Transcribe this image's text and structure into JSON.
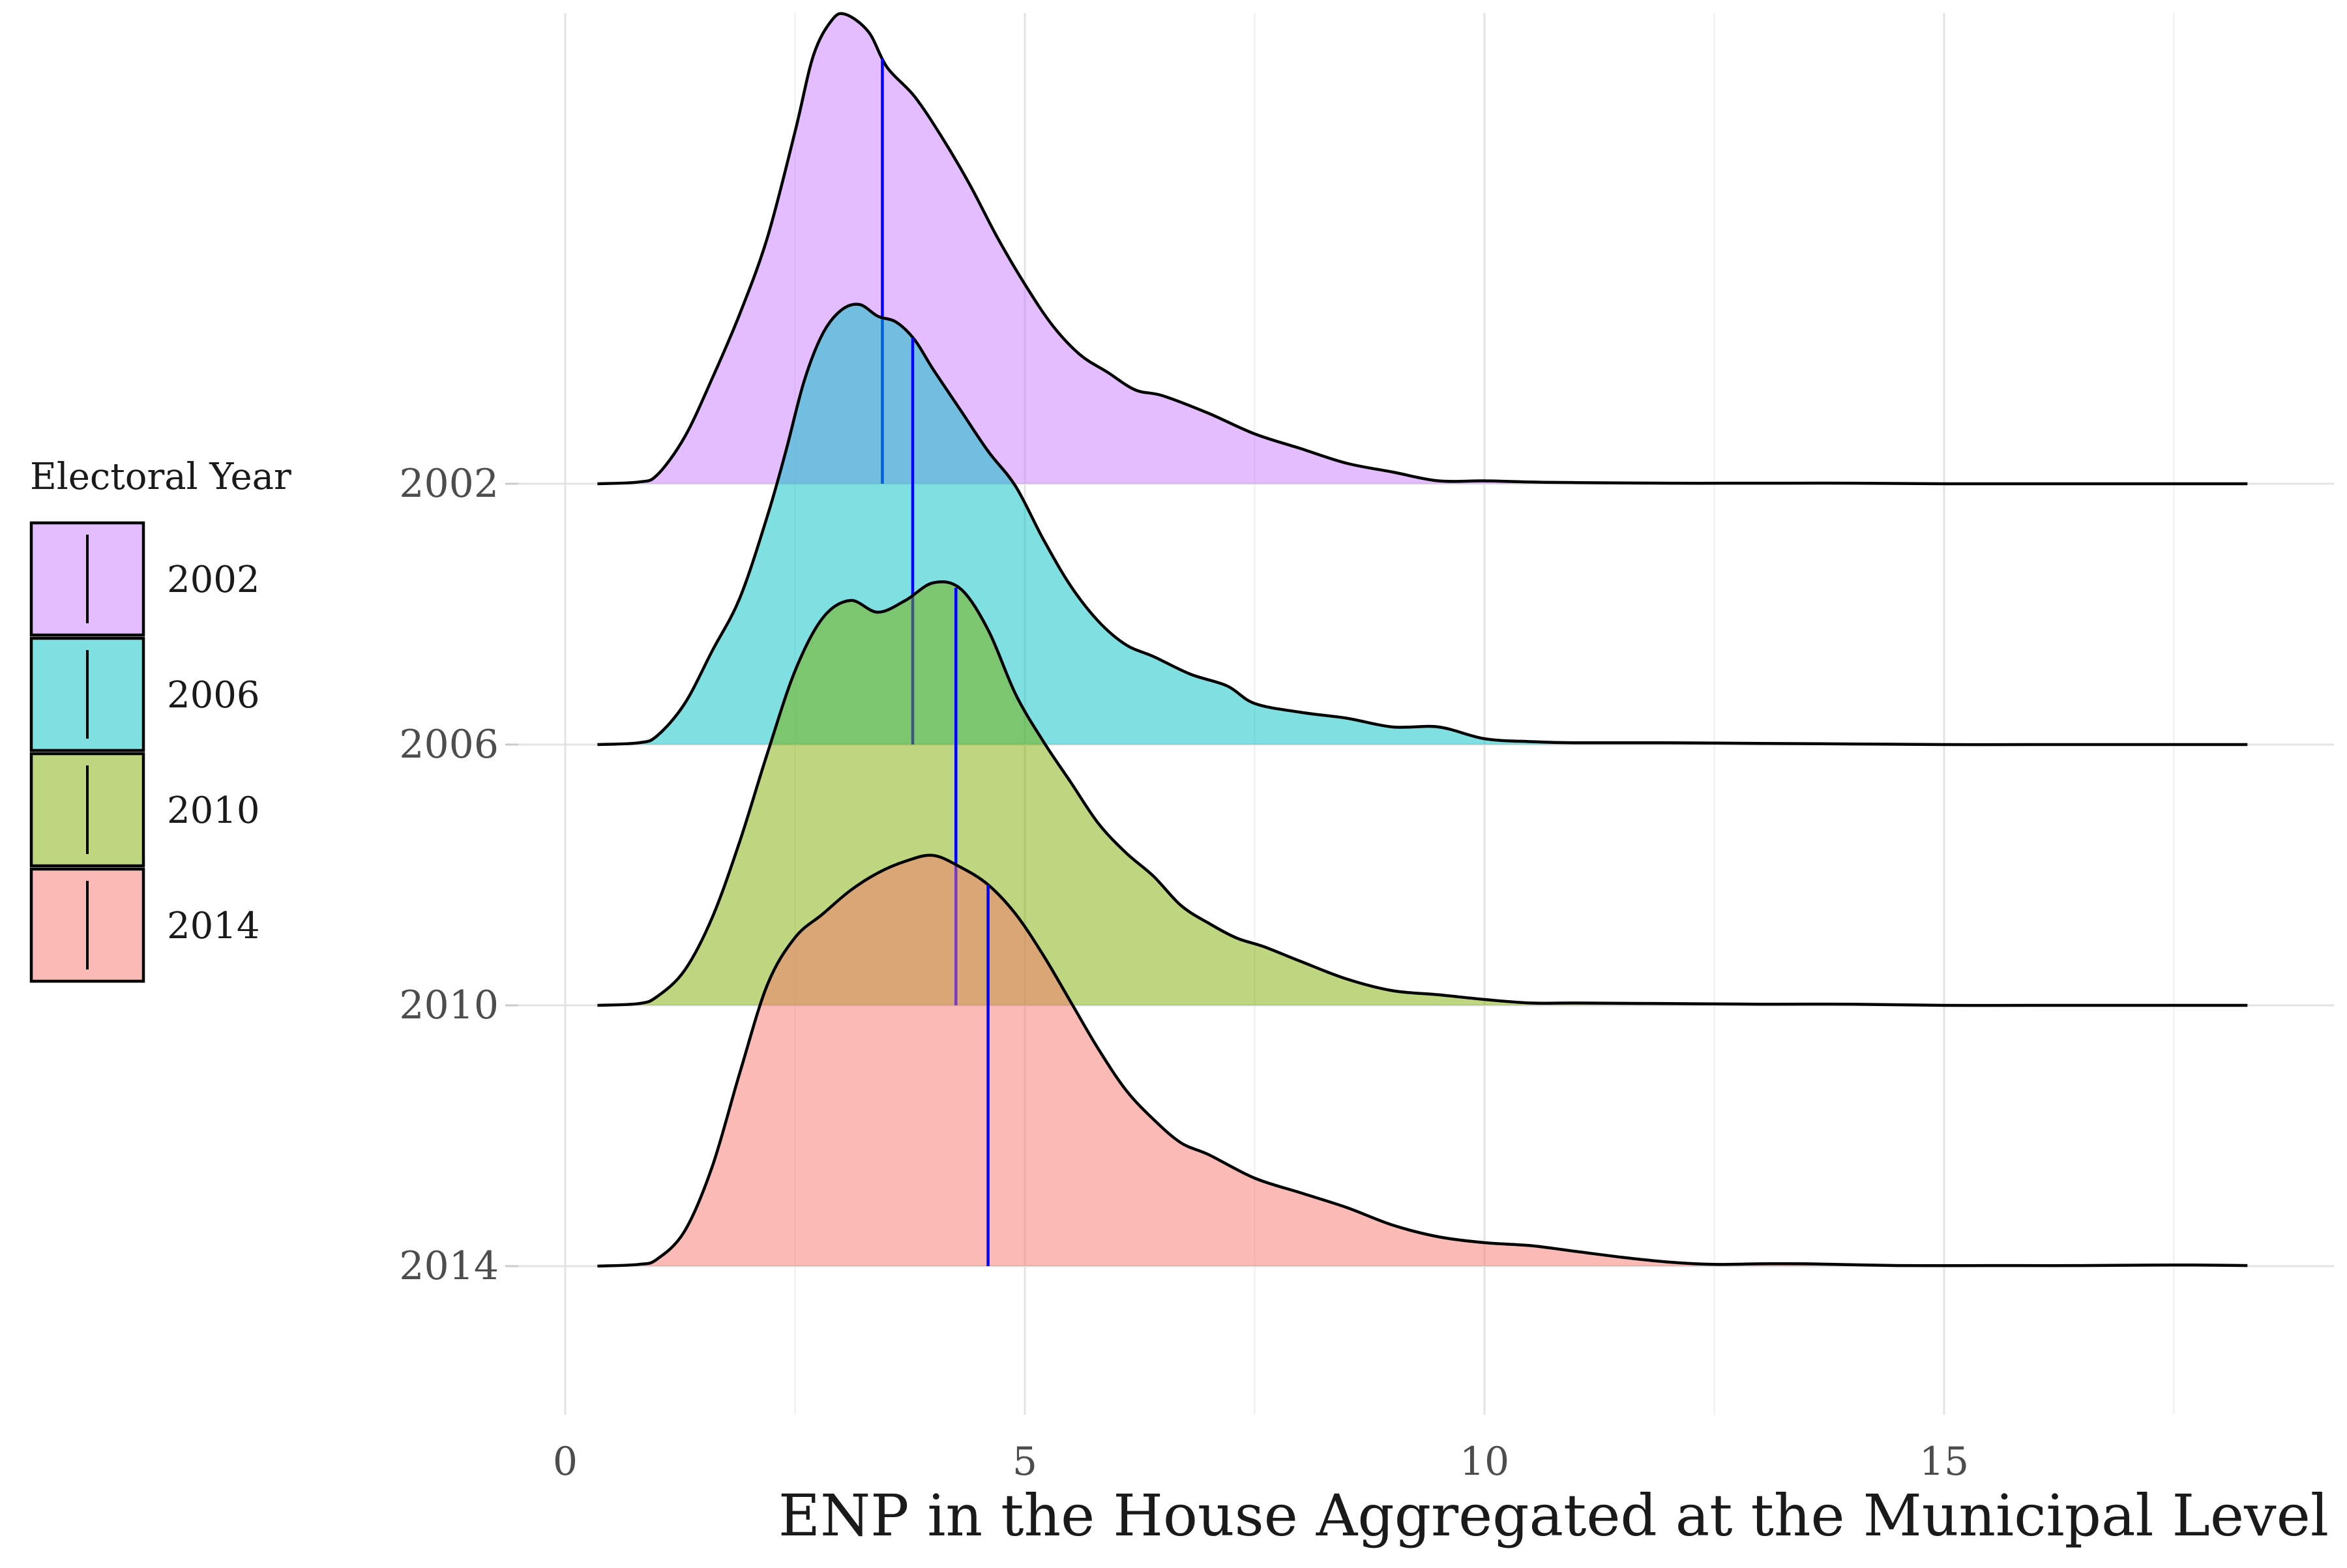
{
  "chart_data": {
    "type": "ridgeline",
    "xlabel": "ENP in the House Aggregated at the Municipal Level",
    "ylabel": "",
    "xlim": [
      0,
      18.5
    ],
    "x_ticks": [
      0,
      5,
      10,
      15
    ],
    "grid": true,
    "legend": {
      "title": "Electoral Year",
      "position": "left",
      "entries": [
        "2002",
        "2006",
        "2010",
        "2014"
      ]
    },
    "median_line_color": "#0000ff",
    "series": [
      {
        "name": "2002",
        "color": "#c77cff",
        "median": 3.45,
        "points": [
          [
            0.35,
            0
          ],
          [
            0.8,
            0.003
          ],
          [
            1.0,
            0.015
          ],
          [
            1.3,
            0.08
          ],
          [
            1.6,
            0.18
          ],
          [
            1.9,
            0.29
          ],
          [
            2.2,
            0.42
          ],
          [
            2.5,
            0.6
          ],
          [
            2.7,
            0.73
          ],
          [
            2.9,
            0.79
          ],
          [
            3.05,
            0.8
          ],
          [
            3.3,
            0.77
          ],
          [
            3.5,
            0.71
          ],
          [
            3.8,
            0.66
          ],
          [
            4.1,
            0.59
          ],
          [
            4.4,
            0.51
          ],
          [
            4.7,
            0.42
          ],
          [
            5.0,
            0.34
          ],
          [
            5.3,
            0.27
          ],
          [
            5.6,
            0.22
          ],
          [
            5.9,
            0.19
          ],
          [
            6.2,
            0.16
          ],
          [
            6.5,
            0.15
          ],
          [
            7.0,
            0.12
          ],
          [
            7.5,
            0.085
          ],
          [
            8.0,
            0.06
          ],
          [
            8.5,
            0.035
          ],
          [
            9.0,
            0.02
          ],
          [
            9.5,
            0.005
          ],
          [
            10.0,
            0.005
          ],
          [
            10.5,
            0.003
          ],
          [
            11.0,
            0.002
          ],
          [
            12.0,
            0.001
          ],
          [
            13.0,
            0.001
          ],
          [
            14.0,
            0.001
          ],
          [
            15.0,
            0.0
          ],
          [
            16.0,
            0.0
          ],
          [
            18.3,
            0.0
          ]
        ]
      },
      {
        "name": "2006",
        "color": "#00bfc4",
        "median": 3.78,
        "points": [
          [
            0.35,
            0
          ],
          [
            0.8,
            0.003
          ],
          [
            1.0,
            0.015
          ],
          [
            1.3,
            0.07
          ],
          [
            1.6,
            0.16
          ],
          [
            1.9,
            0.25
          ],
          [
            2.2,
            0.39
          ],
          [
            2.4,
            0.5
          ],
          [
            2.6,
            0.62
          ],
          [
            2.8,
            0.7
          ],
          [
            3.0,
            0.74
          ],
          [
            3.2,
            0.75
          ],
          [
            3.4,
            0.73
          ],
          [
            3.6,
            0.72
          ],
          [
            3.8,
            0.69
          ],
          [
            4.0,
            0.64
          ],
          [
            4.3,
            0.57
          ],
          [
            4.6,
            0.5
          ],
          [
            4.9,
            0.44
          ],
          [
            5.2,
            0.35
          ],
          [
            5.5,
            0.27
          ],
          [
            5.8,
            0.21
          ],
          [
            6.1,
            0.17
          ],
          [
            6.4,
            0.15
          ],
          [
            6.8,
            0.12
          ],
          [
            7.2,
            0.1
          ],
          [
            7.5,
            0.07
          ],
          [
            8.0,
            0.055
          ],
          [
            8.5,
            0.045
          ],
          [
            9.0,
            0.03
          ],
          [
            9.5,
            0.03
          ],
          [
            10.0,
            0.01
          ],
          [
            10.5,
            0.005
          ],
          [
            11.0,
            0.003
          ],
          [
            12.0,
            0.003
          ],
          [
            13.0,
            0.002
          ],
          [
            14.0,
            0.001
          ],
          [
            15.0,
            0.0
          ],
          [
            16.0,
            0.0
          ],
          [
            18.3,
            0.0
          ]
        ]
      },
      {
        "name": "2010",
        "color": "#7cae00",
        "median": 4.25,
        "points": [
          [
            0.35,
            0
          ],
          [
            0.8,
            0.003
          ],
          [
            1.0,
            0.015
          ],
          [
            1.3,
            0.06
          ],
          [
            1.6,
            0.15
          ],
          [
            1.9,
            0.28
          ],
          [
            2.2,
            0.43
          ],
          [
            2.5,
            0.57
          ],
          [
            2.8,
            0.66
          ],
          [
            3.1,
            0.69
          ],
          [
            3.4,
            0.67
          ],
          [
            3.7,
            0.69
          ],
          [
            4.0,
            0.72
          ],
          [
            4.3,
            0.71
          ],
          [
            4.6,
            0.64
          ],
          [
            4.9,
            0.53
          ],
          [
            5.2,
            0.45
          ],
          [
            5.5,
            0.38
          ],
          [
            5.8,
            0.31
          ],
          [
            6.1,
            0.26
          ],
          [
            6.4,
            0.22
          ],
          [
            6.7,
            0.17
          ],
          [
            7.0,
            0.14
          ],
          [
            7.3,
            0.115
          ],
          [
            7.6,
            0.1
          ],
          [
            8.0,
            0.075
          ],
          [
            8.5,
            0.045
          ],
          [
            9.0,
            0.025
          ],
          [
            9.5,
            0.018
          ],
          [
            10.0,
            0.01
          ],
          [
            10.5,
            0.004
          ],
          [
            11.0,
            0.004
          ],
          [
            12.0,
            0.003
          ],
          [
            13.0,
            0.002
          ],
          [
            14.0,
            0.002
          ],
          [
            15.0,
            0.0
          ],
          [
            16.0,
            0.0
          ],
          [
            18.3,
            0.0
          ]
        ]
      },
      {
        "name": "2014",
        "color": "#f8766d",
        "median": 4.6,
        "points": [
          [
            0.35,
            0
          ],
          [
            0.8,
            0.003
          ],
          [
            1.0,
            0.012
          ],
          [
            1.3,
            0.06
          ],
          [
            1.6,
            0.17
          ],
          [
            1.9,
            0.33
          ],
          [
            2.2,
            0.48
          ],
          [
            2.5,
            0.56
          ],
          [
            2.8,
            0.6
          ],
          [
            3.1,
            0.64
          ],
          [
            3.4,
            0.67
          ],
          [
            3.7,
            0.69
          ],
          [
            4.0,
            0.7
          ],
          [
            4.3,
            0.68
          ],
          [
            4.6,
            0.65
          ],
          [
            4.9,
            0.6
          ],
          [
            5.2,
            0.53
          ],
          [
            5.5,
            0.45
          ],
          [
            5.8,
            0.37
          ],
          [
            6.1,
            0.3
          ],
          [
            6.4,
            0.25
          ],
          [
            6.7,
            0.21
          ],
          [
            7.0,
            0.19
          ],
          [
            7.5,
            0.15
          ],
          [
            8.0,
            0.125
          ],
          [
            8.5,
            0.1
          ],
          [
            9.0,
            0.07
          ],
          [
            9.5,
            0.05
          ],
          [
            10.0,
            0.04
          ],
          [
            10.5,
            0.035
          ],
          [
            11.0,
            0.025
          ],
          [
            11.5,
            0.015
          ],
          [
            12.0,
            0.007
          ],
          [
            12.5,
            0.003
          ],
          [
            13.0,
            0.004
          ],
          [
            13.5,
            0.004
          ],
          [
            14.5,
            0.001
          ],
          [
            15.5,
            0.001
          ],
          [
            16.5,
            0.001
          ],
          [
            17.5,
            0.002
          ],
          [
            18.3,
            0.001
          ]
        ]
      }
    ]
  }
}
